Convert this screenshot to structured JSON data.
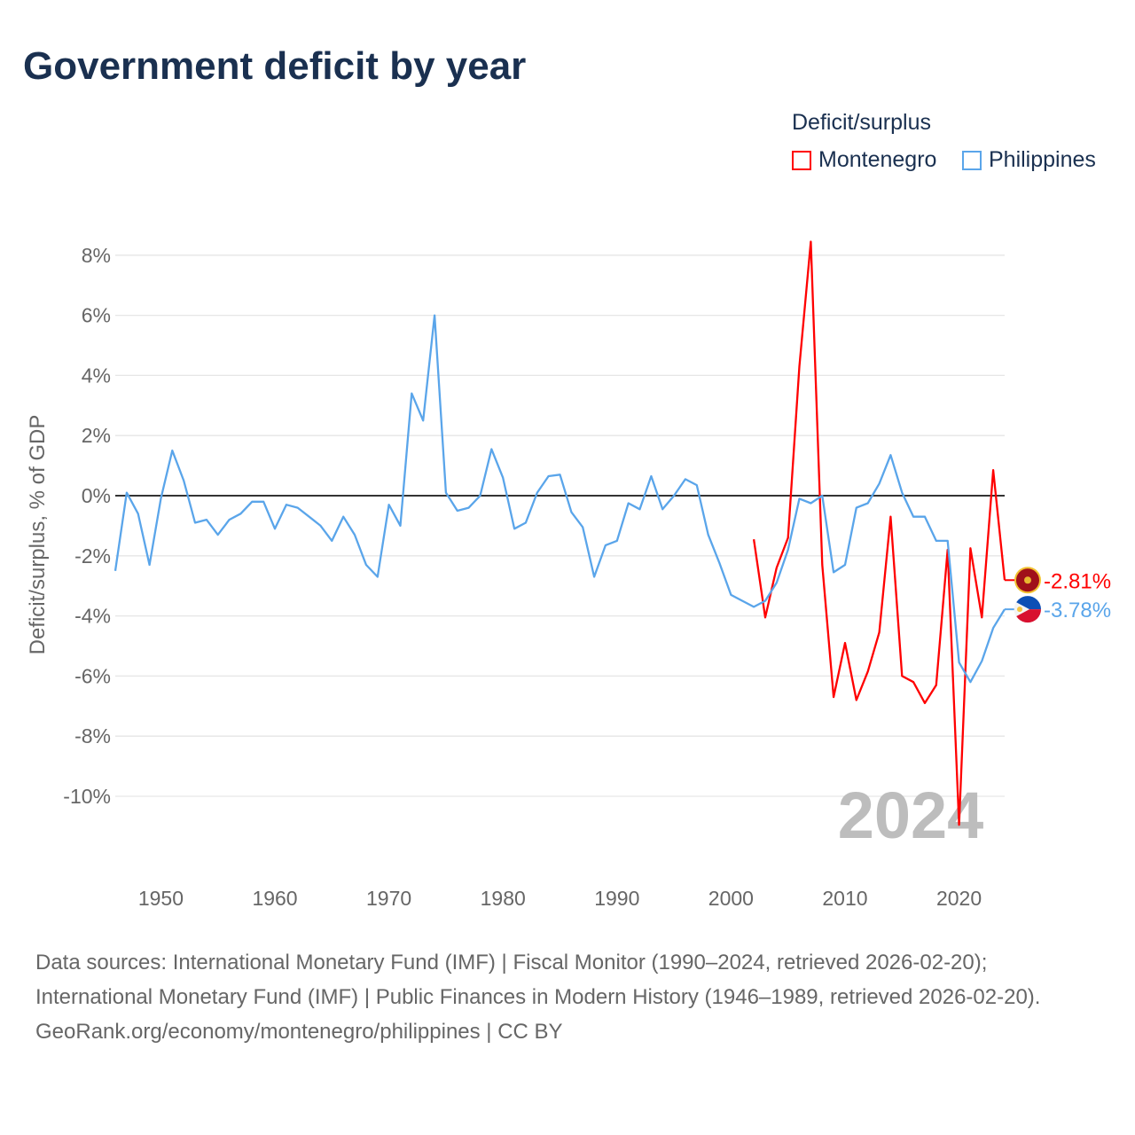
{
  "title": "Government deficit by year",
  "legend": {
    "title": "Deficit/surplus",
    "items": [
      {
        "label": "Montenegro",
        "color": "#ff0000"
      },
      {
        "label": "Philippines",
        "color": "#5aa5ea"
      }
    ]
  },
  "source": {
    "line1": "Data sources: International Monetary Fund (IMF) | Fiscal Monitor (1990–2024, retrieved 2026-02-20); International Monetary Fund (IMF) | Public Finances in Modern History (1946–1989, retrieved 2026-02-20).",
    "line2": "GeoRank.org/economy/montenegro/philippines | CC BY"
  },
  "chart_data": {
    "type": "line",
    "title": "Government deficit by year",
    "xlabel": "",
    "ylabel": "Deficit/surplus, % of GDP",
    "xlim": [
      1946,
      2024
    ],
    "ylim": [
      -12,
      8.5
    ],
    "xticks": [
      1950,
      1960,
      1970,
      1980,
      1990,
      2000,
      2010,
      2020
    ],
    "xtick_labels": [
      "1950",
      "1960",
      "1970",
      "1980",
      "1990",
      "2000",
      "2010",
      "2020"
    ],
    "yticks": [
      8,
      6,
      4,
      2,
      0,
      -2,
      -4,
      -6,
      -8,
      -10
    ],
    "ytick_labels": [
      "8%",
      "6%",
      "4%",
      "2%",
      "0%",
      "-2%",
      "-4%",
      "-6%",
      "-8%",
      "-10%"
    ],
    "grid": true,
    "legend_position": "top-right",
    "year_watermark": "2024",
    "series": [
      {
        "name": "Montenegro",
        "color": "#ff0000",
        "end_label": "-2.81%",
        "start_year": 2002,
        "values": [
          -1.45,
          -4.05,
          -2.4,
          -1.4,
          4.3,
          8.45,
          -2.3,
          -6.7,
          -4.9,
          -6.8,
          -5.85,
          -4.55,
          -0.7,
          -6.0,
          -6.2,
          -6.9,
          -6.3,
          -1.8,
          -10.95,
          -1.75,
          -4.05,
          0.85,
          -2.81
        ]
      },
      {
        "name": "Philippines",
        "color": "#5aa5ea",
        "end_label": "-3.78%",
        "start_year": 1946,
        "values": [
          -2.5,
          0.1,
          -0.6,
          -2.3,
          -0.1,
          1.5,
          0.5,
          -0.9,
          -0.8,
          -1.3,
          -0.8,
          -0.6,
          -0.2,
          -0.2,
          -1.1,
          -0.3,
          -0.4,
          -0.7,
          -1.0,
          -1.5,
          -0.7,
          -1.3,
          -2.3,
          -2.7,
          -0.3,
          -1.0,
          3.4,
          2.5,
          6.0,
          0.1,
          -0.5,
          -0.4,
          0.0,
          1.55,
          0.6,
          -1.1,
          -0.9,
          0.1,
          0.65,
          0.7,
          -0.55,
          -1.05,
          -2.7,
          -1.65,
          -1.5,
          -0.25,
          -0.45,
          0.65,
          -0.45,
          0.0,
          0.55,
          0.35,
          -1.3,
          -2.25,
          -3.3,
          -3.5,
          -3.7,
          -3.5,
          -2.9,
          -1.8,
          -0.1,
          -0.25,
          0.0,
          -2.55,
          -2.3,
          -0.4,
          -0.25,
          0.4,
          1.35,
          0.1,
          -0.7,
          -0.7,
          -1.5,
          -1.5,
          -5.55,
          -6.2,
          -5.5,
          -4.4,
          -3.78
        ]
      }
    ]
  }
}
